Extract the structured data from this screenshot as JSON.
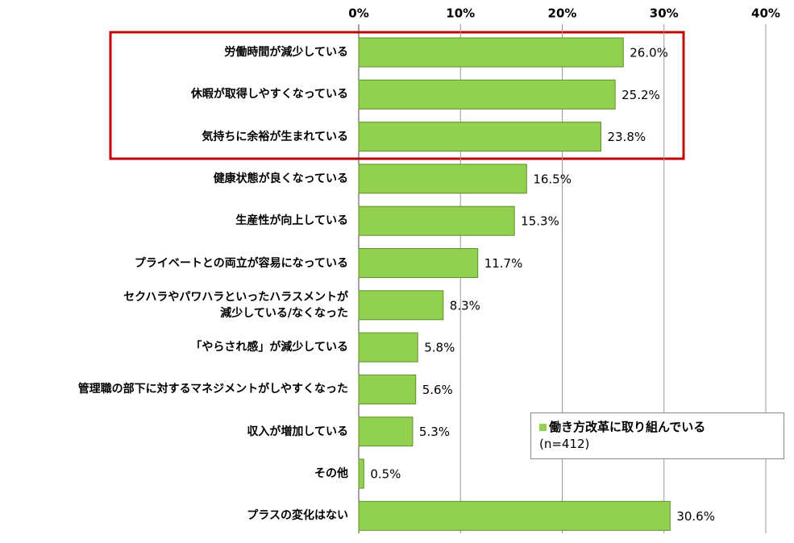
{
  "chart_data": {
    "type": "bar",
    "orientation": "horizontal",
    "categories": [
      "労働時間が減少している",
      "休暇が取得しやすくなっている",
      "気持ちに余裕が生まれている",
      "健康状態が良くなっている",
      "生産性が向上している",
      "プライベートとの両立が容易になっている",
      "セクハラやパワハラといったハラスメントが\n減少している/なくなった",
      "「やらされ感」が減少している",
      "管理職の部下に対するマネジメントがしやすくなった",
      "収入が増加している",
      "その他",
      "プラスの変化はない"
    ],
    "series": [
      {
        "name": "働き方改革に取り組んでいる",
        "color": "#92d050",
        "values": [
          26.0,
          25.2,
          23.8,
          16.5,
          15.3,
          11.7,
          8.3,
          5.8,
          5.6,
          5.3,
          0.5,
          30.6
        ],
        "value_labels": [
          "26.0%",
          "25.2%",
          "23.8%",
          "16.5%",
          "15.3%",
          "11.7%",
          "8.3%",
          "5.8%",
          "5.6%",
          "5.3%",
          "0.5%",
          "30.6%"
        ]
      }
    ],
    "legend_note": "(n=412)",
    "xlim": [
      0,
      40
    ],
    "xticks": [
      {
        "value": 0,
        "label": "0%"
      },
      {
        "value": 10,
        "label": "10%"
      },
      {
        "value": 20,
        "label": "20%"
      },
      {
        "value": 30,
        "label": "30%"
      },
      {
        "value": 40,
        "label": "40%"
      }
    ],
    "grid": true
  }
}
